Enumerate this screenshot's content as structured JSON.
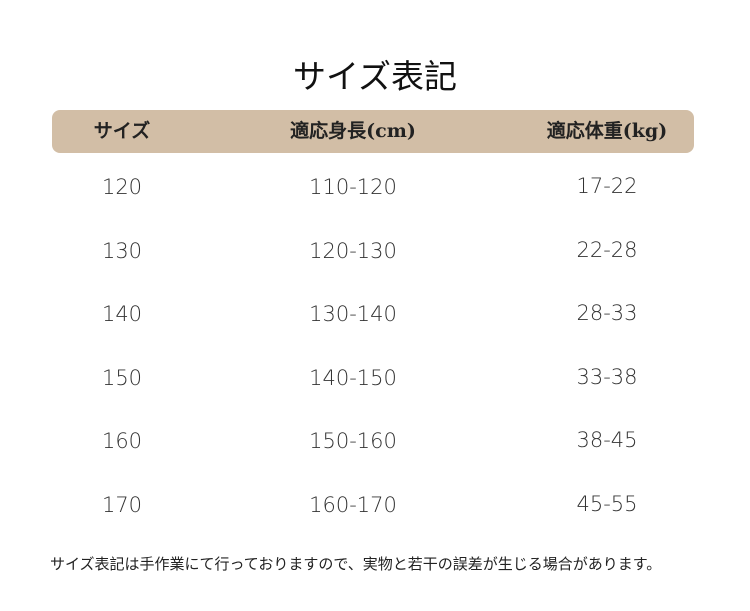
{
  "title": "サイズ表記",
  "table": {
    "header": [
      "サイズ",
      "適応身長(cm)",
      "適応体重(kg)"
    ],
    "rows": [
      [
        "120",
        "110-120",
        "17-22"
      ],
      [
        "130",
        "120-130",
        "22-28"
      ],
      [
        "140",
        "130-140",
        "28-33"
      ],
      [
        "150",
        "140-150",
        "33-38"
      ],
      [
        "160",
        "150-160",
        "38-45"
      ],
      [
        "170",
        "160-170",
        "45-55"
      ]
    ]
  },
  "note": "サイズ表記は手作業にて行っておりますので、実物と若干の誤差が生じる場合があります。"
}
